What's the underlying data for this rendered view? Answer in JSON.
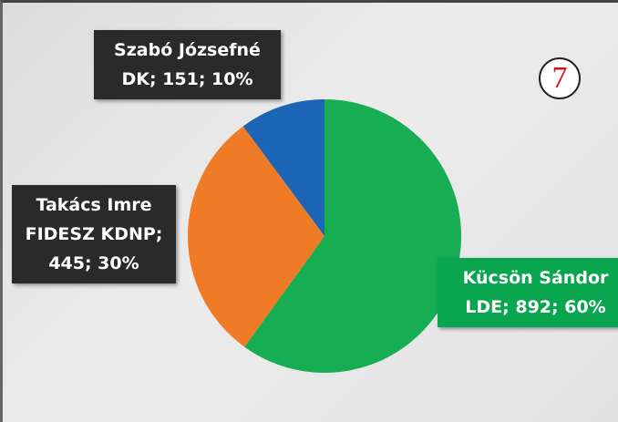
{
  "chart_data": {
    "type": "pie",
    "categories": [
      "Kücsön Sándor",
      "Takács Imre",
      "Szabó Józsefné"
    ],
    "values": [
      892,
      445,
      151
    ],
    "value_labels": [
      "LDE; 892; 60%",
      "FIDESZ KDNP; 445; 30%",
      "DK; 151; 10%"
    ],
    "colors": [
      "#17ad52",
      "#f07b26",
      "#1b64b6"
    ],
    "annotation": "7"
  }
}
